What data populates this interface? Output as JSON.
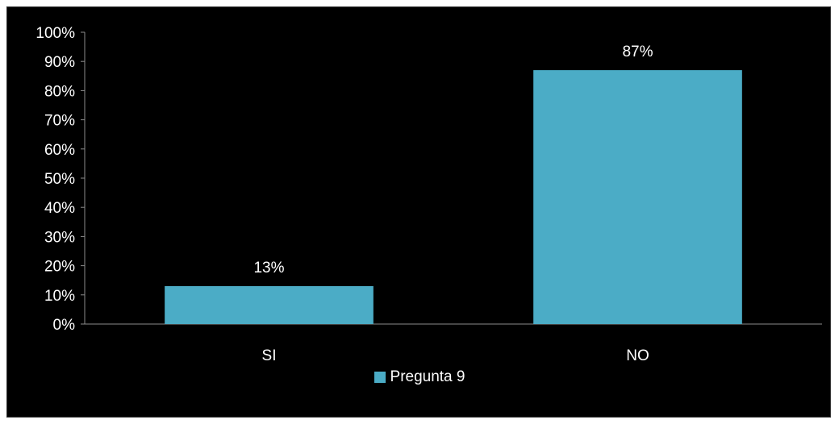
{
  "chart_data": {
    "type": "bar",
    "categories": [
      "SI",
      "NO"
    ],
    "series": [
      {
        "name": "Pregunta 9",
        "values": [
          13,
          87
        ],
        "color": "#4bacc6"
      }
    ],
    "data_labels": [
      "13%",
      "87%"
    ],
    "y_ticks": [
      "0%",
      "10%",
      "20%",
      "30%",
      "40%",
      "50%",
      "60%",
      "70%",
      "80%",
      "90%",
      "100%"
    ],
    "ylim": [
      0,
      100
    ],
    "grid": false,
    "legend_position": "bottom",
    "background": "#000000"
  }
}
